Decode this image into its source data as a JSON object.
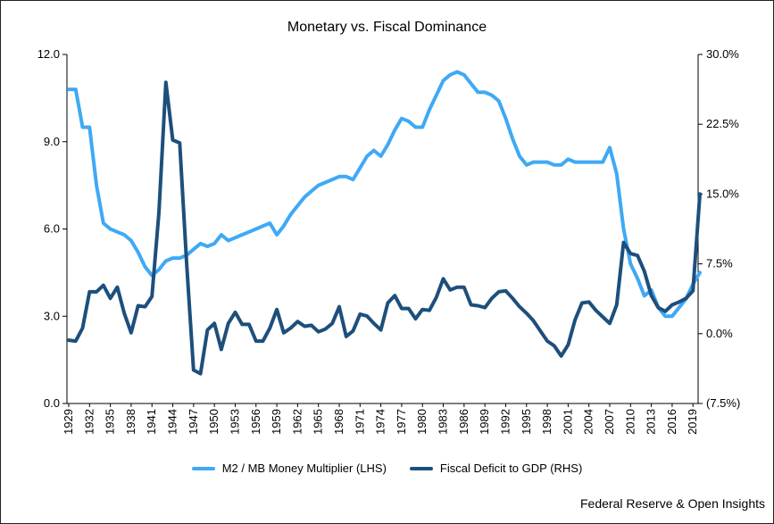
{
  "chart_data": {
    "type": "line",
    "title": "Monetary vs. Fiscal Dominance",
    "source": "Federal Reserve & Open Insights",
    "xlabel": "",
    "ylabel": "",
    "y_left": {
      "min": 0,
      "max": 12,
      "ticks": [
        "0.0",
        "3.0",
        "6.0",
        "9.0",
        "12.0"
      ]
    },
    "y_right": {
      "min": -7.5,
      "max": 30,
      "ticks": [
        "(7.5%)",
        "0.0%",
        "7.5%",
        "15.0%",
        "22.5%",
        "30.0%"
      ]
    },
    "x_ticks": [
      "1929",
      "1932",
      "1935",
      "1938",
      "1941",
      "1944",
      "1947",
      "1950",
      "1953",
      "1956",
      "1959",
      "1962",
      "1965",
      "1968",
      "1971",
      "1974",
      "1977",
      "1980",
      "1983",
      "1986",
      "1989",
      "1992",
      "1995",
      "1998",
      "2001",
      "2004",
      "2007",
      "2010",
      "2013",
      "2016",
      "2019"
    ],
    "x": [
      1929,
      1930,
      1931,
      1932,
      1933,
      1934,
      1935,
      1936,
      1937,
      1938,
      1939,
      1940,
      1941,
      1942,
      1943,
      1944,
      1945,
      1946,
      1947,
      1948,
      1949,
      1950,
      1951,
      1952,
      1953,
      1954,
      1955,
      1956,
      1957,
      1958,
      1959,
      1960,
      1961,
      1962,
      1963,
      1964,
      1965,
      1966,
      1967,
      1968,
      1969,
      1970,
      1971,
      1972,
      1973,
      1974,
      1975,
      1976,
      1977,
      1978,
      1979,
      1980,
      1981,
      1982,
      1983,
      1984,
      1985,
      1986,
      1987,
      1988,
      1989,
      1990,
      1991,
      1992,
      1993,
      1994,
      1995,
      1996,
      1997,
      1998,
      1999,
      2000,
      2001,
      2002,
      2003,
      2004,
      2005,
      2006,
      2007,
      2008,
      2009,
      2010,
      2011,
      2012,
      2013,
      2014,
      2015,
      2016,
      2017,
      2018,
      2019,
      2020
    ],
    "grid": false,
    "legend_position": "bottom",
    "series": [
      {
        "name": "M2 / MB Money Multiplier (LHS)",
        "axis": "left",
        "color": "#3fa9f5",
        "values": [
          10.8,
          10.8,
          9.5,
          9.5,
          7.5,
          6.2,
          6.0,
          5.9,
          5.8,
          5.6,
          5.2,
          4.7,
          4.4,
          4.6,
          4.9,
          5.0,
          5.0,
          5.1,
          5.3,
          5.5,
          5.4,
          5.5,
          5.8,
          5.6,
          5.7,
          5.8,
          5.9,
          6.0,
          6.1,
          6.2,
          5.8,
          6.1,
          6.5,
          6.8,
          7.1,
          7.3,
          7.5,
          7.6,
          7.7,
          7.8,
          7.8,
          7.7,
          8.1,
          8.5,
          8.7,
          8.5,
          8.9,
          9.4,
          9.8,
          9.7,
          9.5,
          9.5,
          10.1,
          10.6,
          11.1,
          11.3,
          11.4,
          11.3,
          11.0,
          10.7,
          10.7,
          10.6,
          10.4,
          9.8,
          9.1,
          8.5,
          8.2,
          8.3,
          8.3,
          8.3,
          8.2,
          8.2,
          8.4,
          8.3,
          8.3,
          8.3,
          8.3,
          8.3,
          8.8,
          7.9,
          6.0,
          4.8,
          4.3,
          3.7,
          3.9,
          3.3,
          3.0,
          3.0,
          3.3,
          3.6,
          4.1,
          4.5
        ]
      },
      {
        "name": "Fiscal Deficit to GDP (RHS)",
        "axis": "right",
        "color": "#1d4f7c",
        "values": [
          -0.7,
          -0.8,
          0.6,
          4.5,
          4.5,
          5.2,
          3.8,
          5.0,
          2.2,
          0.1,
          3.0,
          2.9,
          4.0,
          13.0,
          27.0,
          20.8,
          20.5,
          7.5,
          -3.9,
          -4.3,
          0.4,
          1.1,
          -1.7,
          1.1,
          2.3,
          1.0,
          1.0,
          -0.8,
          -0.8,
          0.6,
          2.6,
          0.1,
          0.6,
          1.3,
          0.8,
          0.9,
          0.2,
          0.5,
          1.1,
          2.9,
          -0.3,
          0.3,
          2.1,
          1.9,
          1.1,
          0.4,
          3.3,
          4.1,
          2.7,
          2.7,
          1.6,
          2.6,
          2.5,
          3.9,
          5.9,
          4.7,
          5.0,
          5.0,
          3.1,
          3.0,
          2.8,
          3.8,
          4.5,
          4.6,
          3.8,
          2.9,
          2.2,
          1.4,
          0.3,
          -0.8,
          -1.3,
          -2.4,
          -1.2,
          1.5,
          3.3,
          3.4,
          2.5,
          1.8,
          1.1,
          3.1,
          9.8,
          8.6,
          8.4,
          6.7,
          4.1,
          2.8,
          2.4,
          3.1,
          3.4,
          3.8,
          4.6,
          15.0
        ]
      }
    ]
  }
}
